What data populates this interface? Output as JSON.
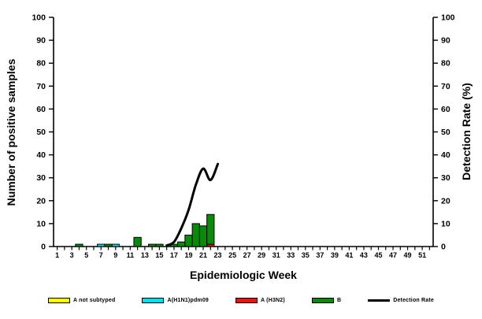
{
  "chart_data": {
    "type": "bar-line-combo",
    "x_axis": {
      "label": "Epidemiologic Week",
      "weeks_min": 1,
      "weeks_max": 52,
      "labeled_ticks": [
        1,
        3,
        5,
        7,
        9,
        11,
        13,
        15,
        17,
        19,
        21,
        23,
        25,
        27,
        29,
        31,
        33,
        35,
        37,
        39,
        41,
        43,
        45,
        47,
        49,
        51
      ]
    },
    "y_left_axis": {
      "label": "Number of positive samples",
      "min": 0,
      "max": 100,
      "step": 10
    },
    "y_right_axis": {
      "label": "Detection Rate (%)",
      "min": 0,
      "max": 100,
      "step": 10
    },
    "bar_series": [
      {
        "name": "A not subtyped",
        "color": "#FFFF00",
        "data": {}
      },
      {
        "name": "A(H1N1)pdm09",
        "color": "#00E0EE",
        "data": {
          "7": 1,
          "9": 1
        }
      },
      {
        "name": "A (H3N2)",
        "color": "#EE1111",
        "data": {
          "22": 1
        }
      },
      {
        "name": "B",
        "color": "#0A8A0A",
        "data": {
          "4": 1,
          "8": 1,
          "12": 4,
          "14": 1,
          "15": 1,
          "17": 1,
          "18": 2,
          "19": 5,
          "20": 10,
          "21": 9,
          "22": 13
        }
      }
    ],
    "line_series": {
      "name": "Detection Rate",
      "color": "#000000",
      "points": [
        [
          16,
          0.5
        ],
        [
          17,
          2
        ],
        [
          18,
          8
        ],
        [
          19,
          16
        ],
        [
          20,
          27
        ],
        [
          21,
          34
        ],
        [
          22,
          29
        ],
        [
          23,
          36
        ]
      ]
    },
    "legend": {
      "items": [
        {
          "label": "A not subtyped",
          "color": "#FFFF00",
          "swatch": "rect"
        },
        {
          "label": "A(H1N1)pdm09",
          "color": "#00E0EE",
          "swatch": "rect"
        },
        {
          "label": "A (H3N2)",
          "color": "#EE1111",
          "swatch": "rect"
        },
        {
          "label": "B",
          "color": "#0A8A0A",
          "swatch": "rect"
        },
        {
          "label": "Detection Rate",
          "color": "#000000",
          "swatch": "line"
        }
      ]
    }
  }
}
